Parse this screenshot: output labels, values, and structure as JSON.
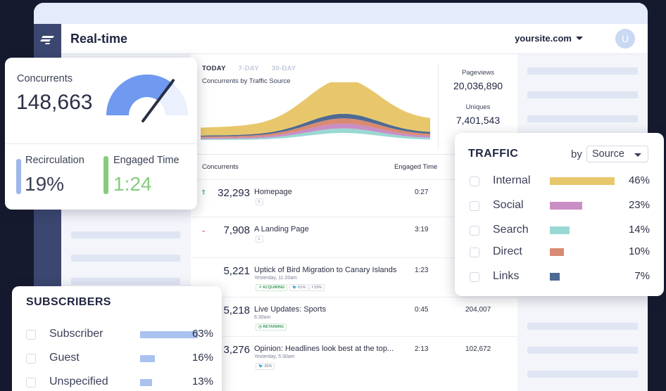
{
  "header": {
    "title": "Real-time",
    "site": "yoursite.com",
    "avatar_letter": "U"
  },
  "chart": {
    "tabs": [
      {
        "label": "TODAY",
        "active": true
      },
      {
        "label": "7-DAY",
        "active": false
      },
      {
        "label": "30-DAY",
        "active": false
      }
    ],
    "subtitle": "Concurrents by Traffic Source",
    "stream_colors": [
      "#9ad8d2",
      "#c98ec5",
      "#d98a73",
      "#4d6a93",
      "#e8c76c"
    ]
  },
  "stats": {
    "pageviews_label": "Pageviews",
    "pageviews_value": "20,036,890",
    "uniques_label": "Uniques",
    "uniques_value": "7,401,543"
  },
  "table": {
    "col_concurrents": "Concurrents",
    "col_engaged": "Engaged Time",
    "rows": [
      {
        "arrow": "up",
        "count": "32,293",
        "title": "Homepage",
        "meta": "",
        "tags": [
          "L"
        ],
        "engaged": "0:27",
        "pageviews": ""
      },
      {
        "arrow": "down",
        "count": "7,908",
        "title": "A Landing Page",
        "meta": "",
        "tags": [
          "L"
        ],
        "engaged": "3:19",
        "pageviews": ""
      },
      {
        "arrow": "",
        "count": "5,221",
        "title": "Uptick of Bird Migration to Canary Islands",
        "meta": "Yesterday, 11:20am",
        "tags": [
          "↗ ACQUIRING",
          "🐦 61%",
          "f 33%"
        ],
        "engaged": "1:23",
        "pageviews": ""
      },
      {
        "arrow": "",
        "count": "5,218",
        "title": "Live Updates: Sports",
        "meta": "6:30am",
        "tags": [
          "◷ RETAINING"
        ],
        "engaged": "0:45",
        "pageviews": "204,007"
      },
      {
        "arrow": "",
        "count": "3,276",
        "title": "Opinion: Headlines look best at the top...",
        "meta": "Yesterday, 5:30am",
        "tags": [
          "🐦 26%"
        ],
        "engaged": "2:13",
        "pageviews": "102,672"
      }
    ]
  },
  "concurrents_card": {
    "label": "Concurrents",
    "value": "148,663",
    "gauge_level": 0.72,
    "recirculation_label": "Recirculation",
    "recirculation_value": "19%",
    "engaged_label": "Engaged Time",
    "engaged_value": "1:24",
    "colors": {
      "gauge": "#6f9af0",
      "recirc": "#9fb7ea",
      "engaged": "#86cc7d"
    }
  },
  "subscribers": {
    "title": "SUBSCRIBERS",
    "rows": [
      {
        "label": "Subscriber",
        "pct": "63%",
        "value": 63
      },
      {
        "label": "Guest",
        "pct": "16%",
        "value": 16
      },
      {
        "label": "Unspecified",
        "pct": "13%",
        "value": 13
      }
    ]
  },
  "traffic": {
    "title": "TRAFFIC",
    "by_label": "by",
    "select_value": "Source",
    "rows": [
      {
        "label": "Internal",
        "pct": "46%",
        "value": 46,
        "color": "#e8c76c"
      },
      {
        "label": "Social",
        "pct": "23%",
        "value": 23,
        "color": "#c98ec5"
      },
      {
        "label": "Search",
        "pct": "14%",
        "value": 14,
        "color": "#9ad8d2"
      },
      {
        "label": "Direct",
        "pct": "10%",
        "value": 10,
        "color": "#d98a73"
      },
      {
        "label": "Links",
        "pct": "7%",
        "value": 7,
        "color": "#4d6a93"
      }
    ]
  }
}
